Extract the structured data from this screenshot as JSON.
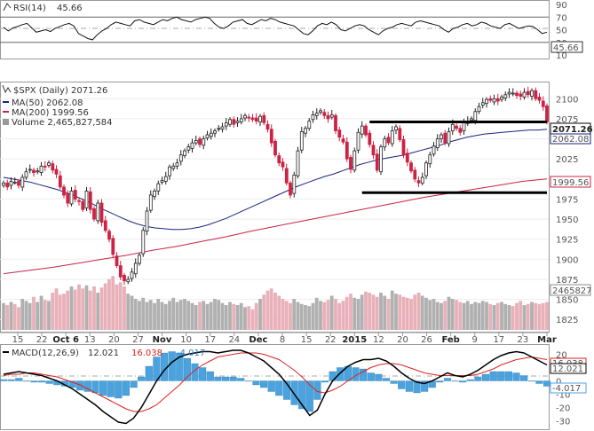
{
  "chart_data": {
    "type": "candlestick",
    "rsi": {
      "legend": "RSI(14)",
      "value_label": "45.66",
      "ticks": [
        "90",
        "70",
        "50",
        "30",
        "10"
      ],
      "ylim": [
        10,
        90
      ],
      "levels": [
        70,
        30
      ],
      "values": [
        54,
        48,
        53,
        55,
        58,
        60,
        53,
        46,
        48,
        50,
        47,
        52,
        55,
        58,
        60,
        56,
        44,
        40,
        36,
        34,
        42,
        48,
        52,
        58,
        62,
        60,
        58,
        56,
        64,
        66,
        62,
        60,
        58,
        62,
        66,
        64,
        68,
        70,
        66,
        64,
        62,
        66,
        68,
        70,
        68,
        60,
        54,
        52,
        56,
        62,
        64,
        66,
        60,
        58,
        62,
        66,
        64,
        68,
        66,
        62,
        60,
        58,
        56,
        50,
        44,
        42,
        48,
        56,
        60,
        58,
        62,
        58,
        50,
        48,
        52,
        56,
        58,
        56,
        50,
        46,
        42,
        48,
        52,
        54,
        58,
        60,
        58,
        56,
        62,
        64,
        62,
        60,
        58,
        56,
        50,
        46,
        52,
        54,
        58,
        60,
        56,
        58,
        62,
        60,
        56,
        54,
        52,
        58,
        60,
        56,
        52,
        54,
        56,
        55,
        50,
        44,
        46
      ]
    },
    "price": {
      "legend": "$SPX (Daily) 2071.26",
      "ma50_legend": "MA(50) 2062.08",
      "ma200_legend": "MA(200) 1999.56",
      "volume_legend": "Volume 2,465,827,584",
      "last_label": "2071.26",
      "ma50_label": "2062.08",
      "ma200_label": "1999.56",
      "volume_label": "2465827",
      "ticks": [
        "2100",
        "2075",
        "2050",
        "2025",
        "2000",
        "1975",
        "1950",
        "1925",
        "1900",
        "1875",
        "1850",
        "1825"
      ],
      "ylim": [
        1812,
        2118
      ],
      "closes": [
        1995,
        1990,
        1997,
        1996,
        1992,
        2002,
        2009,
        2012,
        2008,
        2010,
        2016,
        2015,
        2020,
        2011,
        2006,
        1990,
        1980,
        1970,
        1985,
        1975,
        1972,
        1962,
        1985,
        1962,
        1950,
        1970,
        1946,
        1936,
        1925,
        1906,
        1892,
        1878,
        1873,
        1875,
        1884,
        1895,
        1905,
        1936,
        1960,
        1980,
        1985,
        1994,
        1998,
        2003,
        2015,
        2016,
        2020,
        2030,
        2035,
        2040,
        2045,
        2048,
        2043,
        2050,
        2055,
        2057,
        2060,
        2063,
        2065,
        2070,
        2074,
        2068,
        2072,
        2075,
        2079,
        2076,
        2074,
        2072,
        2078,
        2070,
        2062,
        2045,
        2030,
        2020,
        2015,
        1995,
        1980,
        2005,
        2035,
        2059,
        2063,
        2072,
        2080,
        2082,
        2085,
        2079,
        2075,
        2080,
        2060,
        2052,
        2046,
        2025,
        2012,
        2035,
        2058,
        2066,
        2055,
        2043,
        2030,
        2011,
        2040,
        2050,
        2045,
        2060,
        2065,
        2049,
        2030,
        2021,
        2010,
        2000,
        1995,
        2002,
        2020,
        2030,
        2041,
        2050,
        2055,
        2045,
        2059,
        2068,
        2063,
        2058,
        2070,
        2072,
        2075,
        2084,
        2090,
        2095,
        2099,
        2098,
        2100,
        2097,
        2102,
        2105,
        2108,
        2107,
        2104,
        2103,
        2108,
        2105,
        2110,
        2100,
        2098,
        2090,
        2071
      ],
      "ma50": [
        2002,
        2000,
        1998,
        1996,
        1993,
        1990,
        1987,
        1983,
        1979,
        1974,
        1969,
        1963,
        1958,
        1953,
        1948,
        1944,
        1941,
        1939,
        1938,
        1937,
        1937,
        1938,
        1940,
        1943,
        1947,
        1951,
        1956,
        1961,
        1966,
        1971,
        1976,
        1981,
        1986,
        1991,
        1995,
        1999,
        2003,
        2006,
        2010,
        2014,
        2018,
        2021,
        2024,
        2026,
        2028,
        2030,
        2033,
        2036,
        2039,
        2042,
        2046,
        2049,
        2052,
        2054,
        2056,
        2057,
        2058,
        2059,
        2060,
        2061,
        2061,
        2062
      ],
      "ma200": [
        1882,
        1886,
        1890,
        1895,
        1900,
        1905,
        1911,
        1916,
        1922,
        1928,
        1935,
        1941,
        1947,
        1953,
        1959,
        1965,
        1971,
        1977,
        1982,
        1987,
        1992,
        1997,
        2000
      ],
      "volume": [
        26,
        24,
        27,
        25,
        22,
        30,
        28,
        26,
        32,
        27,
        33,
        29,
        28,
        36,
        40,
        34,
        35,
        38,
        42,
        39,
        44,
        40,
        43,
        38,
        42,
        36,
        41,
        45,
        49,
        52,
        44,
        46,
        42,
        35,
        33,
        30,
        28,
        31,
        27,
        29,
        26,
        30,
        27,
        25,
        28,
        31,
        27,
        29,
        30,
        28,
        26,
        24,
        27,
        28,
        25,
        27,
        30,
        29,
        26,
        24,
        27,
        25,
        24,
        26,
        22,
        23,
        20,
        26,
        30,
        34,
        38,
        40,
        36,
        33,
        30,
        28,
        26,
        30,
        27,
        25,
        24,
        23,
        26,
        31,
        28,
        27,
        29,
        33,
        30,
        26,
        28,
        32,
        35,
        31,
        30,
        34,
        37,
        36,
        34,
        32,
        36,
        33,
        30,
        38,
        35,
        34,
        32,
        31,
        30,
        34,
        36,
        33,
        31,
        29,
        30,
        27,
        26,
        28,
        32,
        30,
        29,
        27,
        26,
        28,
        25,
        27,
        26,
        28,
        27,
        25,
        24,
        26,
        27,
        25,
        24,
        23,
        26,
        28,
        24,
        25,
        27,
        26,
        25,
        26,
        27
      ]
    },
    "macd": {
      "legend": "MACD(12,26,9)",
      "macd_value": "12.021",
      "signal_value": "16.038",
      "hist_value": "-4.017",
      "ticks": [
        "20",
        "10",
        "0",
        "-10",
        "-20",
        "-30"
      ],
      "ylim": [
        -35,
        25
      ],
      "macd": [
        5,
        6,
        7,
        6,
        5,
        4,
        2,
        0,
        -3,
        -6,
        -10,
        -14,
        -18,
        -23,
        -27,
        -31,
        -32,
        -28,
        -20,
        -10,
        0,
        8,
        14,
        18,
        20,
        21,
        22,
        22,
        21,
        22,
        23,
        23,
        21,
        18,
        15,
        10,
        5,
        -2,
        -10,
        -18,
        -26,
        -22,
        -10,
        0,
        6,
        11,
        14,
        16,
        16,
        17,
        15,
        11,
        6,
        2,
        -1,
        -2,
        0,
        3,
        6,
        4,
        3,
        5,
        8,
        12,
        16,
        19,
        21,
        22,
        21,
        18,
        15,
        12
      ],
      "signal": [
        4,
        5,
        5,
        6,
        6,
        5,
        4,
        3,
        1,
        -1,
        -3,
        -6,
        -9,
        -12,
        -15,
        -18,
        -21,
        -23,
        -23,
        -21,
        -18,
        -13,
        -8,
        -3,
        3,
        8,
        12,
        15,
        18,
        19,
        20,
        21,
        21,
        21,
        20,
        18,
        16,
        12,
        8,
        3,
        -3,
        -8,
        -9,
        -7,
        -4,
        0,
        4,
        7,
        10,
        12,
        13,
        13,
        12,
        10,
        8,
        6,
        5,
        4,
        4,
        4,
        4,
        4,
        5,
        7,
        9,
        12,
        14,
        16,
        17,
        18,
        17,
        16
      ],
      "hist": [
        1,
        1,
        2,
        0,
        -1,
        -1,
        -2,
        -3,
        -4,
        -5,
        -7,
        -8,
        -9,
        -11,
        -12,
        -13,
        -11,
        -5,
        3,
        11,
        18,
        21,
        22,
        21,
        17,
        13,
        10,
        7,
        3,
        3,
        3,
        2,
        0,
        -3,
        -5,
        -8,
        -11,
        -14,
        -18,
        -21,
        -23,
        -14,
        -1,
        7,
        10,
        11,
        10,
        9,
        6,
        5,
        2,
        -2,
        -6,
        -8,
        -9,
        -8,
        -5,
        -1,
        2,
        0,
        -1,
        1,
        3,
        5,
        7,
        7,
        7,
        6,
        4,
        0,
        -2,
        -4
      ]
    },
    "x_ticks": [
      {
        "label": "15",
        "bold": false
      },
      {
        "label": "22",
        "bold": false
      },
      {
        "label": "Oct 6",
        "bold": true
      },
      {
        "label": "13",
        "bold": false
      },
      {
        "label": "20",
        "bold": false
      },
      {
        "label": "27",
        "bold": false
      },
      {
        "label": "Nov",
        "bold": true
      },
      {
        "label": "10",
        "bold": false
      },
      {
        "label": "17",
        "bold": false
      },
      {
        "label": "24",
        "bold": false
      },
      {
        "label": "Dec",
        "bold": true
      },
      {
        "label": "8",
        "bold": false
      },
      {
        "label": "15",
        "bold": false
      },
      {
        "label": "22",
        "bold": false
      },
      {
        "label": "2015",
        "bold": true
      },
      {
        "label": "12",
        "bold": false
      },
      {
        "label": "20",
        "bold": false
      },
      {
        "label": "26",
        "bold": false
      },
      {
        "label": "Feb",
        "bold": true
      },
      {
        "label": "9",
        "bold": false
      },
      {
        "label": "17",
        "bold": false
      },
      {
        "label": "23",
        "bold": false
      },
      {
        "label": "Mar",
        "bold": true
      }
    ],
    "trendlines": [
      {
        "from_bar": 97,
        "to_bar": 144,
        "y": 2071
      },
      {
        "from_bar": 95,
        "to_bar": 144,
        "y": 1983
      }
    ],
    "colors": {
      "up": "#ffffff",
      "down": "#cc2244",
      "ma50": "#1a237e",
      "ma200": "#cc2244",
      "vol_up": "#b0b0b0",
      "vol_down": "#e8b0b8",
      "macd": "#000000",
      "signal": "#dd2222",
      "hist": "#4aa3df",
      "rsi": "#111111"
    }
  }
}
